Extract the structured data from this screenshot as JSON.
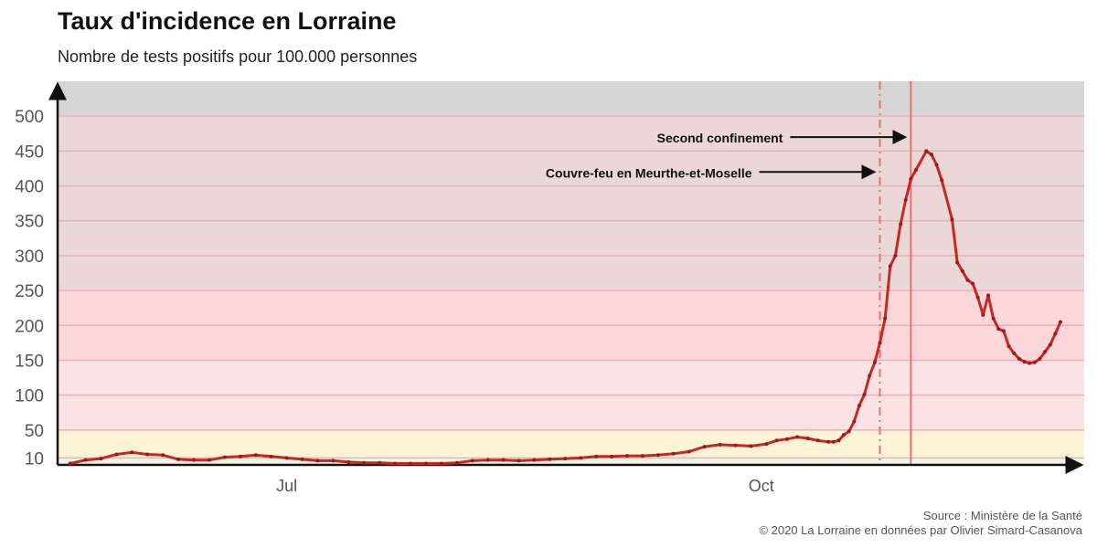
{
  "header": {
    "title": "Taux d'incidence en Lorraine",
    "subtitle": "Nombre de tests positifs pour 100.000 personnes"
  },
  "footer": {
    "source": "Source : Ministère de la Santé",
    "credit": "© 2020 La Lorraine en données par Olivier Simard-Casanova"
  },
  "colors": {
    "line": "#c62828",
    "band_low": "#eef5e4",
    "band_yellow": "#fdf3d6",
    "band_pink_light": "#fde2e4",
    "band_pink": "#fbd7da",
    "band_mauve": "#ecd7d7",
    "band_grey": "#d6d6d6",
    "event_line": "#e57373"
  },
  "chart_data": {
    "type": "line",
    "title": "Taux d'incidence en Lorraine",
    "subtitle": "Nombre de tests positifs pour 100.000 personnes",
    "xlabel": "",
    "ylabel": "",
    "x_start": "2020-05-19",
    "x_end": "2020-11-28",
    "x_ticks": [
      {
        "label": "Jul",
        "date": "2020-07-01"
      },
      {
        "label": "Oct",
        "date": "2020-10-01"
      }
    ],
    "y_ticks": [
      10,
      50,
      100,
      150,
      200,
      250,
      300,
      350,
      400,
      450,
      500
    ],
    "ylim": [
      0,
      550
    ],
    "grid": true,
    "bands": [
      {
        "from": 0,
        "to": 10,
        "color": "#eef5e4"
      },
      {
        "from": 10,
        "to": 50,
        "color": "#fdf3d6"
      },
      {
        "from": 50,
        "to": 150,
        "color": "#fde2e4"
      },
      {
        "from": 150,
        "to": 250,
        "color": "#fbd7da"
      },
      {
        "from": 250,
        "to": 500,
        "color": "#ecd7d7"
      },
      {
        "from": 500,
        "to": 550,
        "color": "#d6d6d6"
      }
    ],
    "events": [
      {
        "label": "Couvre-feu en Meurthe-et-Moselle",
        "date": "2020-10-24",
        "style": "dashdot",
        "label_y": 420
      },
      {
        "label": "Second confinement",
        "date": "2020-10-30",
        "style": "solid",
        "label_y": 470
      }
    ],
    "series": [
      {
        "points": [
          [
            "2020-05-20",
            2
          ],
          [
            "2020-05-23",
            7
          ],
          [
            "2020-05-26",
            9
          ],
          [
            "2020-05-29",
            15
          ],
          [
            "2020-06-01",
            18
          ],
          [
            "2020-06-04",
            15
          ],
          [
            "2020-06-07",
            14
          ],
          [
            "2020-06-10",
            8
          ],
          [
            "2020-06-13",
            7
          ],
          [
            "2020-06-16",
            7
          ],
          [
            "2020-06-19",
            11
          ],
          [
            "2020-06-22",
            12
          ],
          [
            "2020-06-25",
            14
          ],
          [
            "2020-06-28",
            12
          ],
          [
            "2020-07-01",
            10
          ],
          [
            "2020-07-04",
            8
          ],
          [
            "2020-07-07",
            6
          ],
          [
            "2020-07-10",
            6
          ],
          [
            "2020-07-13",
            4
          ],
          [
            "2020-07-16",
            3
          ],
          [
            "2020-07-19",
            3
          ],
          [
            "2020-07-22",
            2
          ],
          [
            "2020-07-25",
            2
          ],
          [
            "2020-07-28",
            2
          ],
          [
            "2020-07-31",
            2
          ],
          [
            "2020-08-03",
            3
          ],
          [
            "2020-08-06",
            6
          ],
          [
            "2020-08-09",
            7
          ],
          [
            "2020-08-12",
            7
          ],
          [
            "2020-08-15",
            6
          ],
          [
            "2020-08-18",
            7
          ],
          [
            "2020-08-21",
            8
          ],
          [
            "2020-08-24",
            9
          ],
          [
            "2020-08-27",
            10
          ],
          [
            "2020-08-30",
            12
          ],
          [
            "2020-09-02",
            12
          ],
          [
            "2020-09-05",
            13
          ],
          [
            "2020-09-08",
            13
          ],
          [
            "2020-09-11",
            14
          ],
          [
            "2020-09-14",
            16
          ],
          [
            "2020-09-17",
            19
          ],
          [
            "2020-09-20",
            26
          ],
          [
            "2020-09-23",
            29
          ],
          [
            "2020-09-26",
            28
          ],
          [
            "2020-09-29",
            27
          ],
          [
            "2020-10-02",
            30
          ],
          [
            "2020-10-04",
            35
          ],
          [
            "2020-10-06",
            37
          ],
          [
            "2020-10-08",
            40
          ],
          [
            "2020-10-10",
            38
          ],
          [
            "2020-10-12",
            35
          ],
          [
            "2020-10-14",
            33
          ],
          [
            "2020-10-15",
            33
          ],
          [
            "2020-10-16",
            35
          ],
          [
            "2020-10-17",
            43
          ],
          [
            "2020-10-18",
            48
          ],
          [
            "2020-10-19",
            62
          ],
          [
            "2020-10-20",
            85
          ],
          [
            "2020-10-21",
            101
          ],
          [
            "2020-10-22",
            128
          ],
          [
            "2020-10-23",
            147
          ],
          [
            "2020-10-24",
            175
          ],
          [
            "2020-10-25",
            210
          ],
          [
            "2020-10-26",
            285
          ],
          [
            "2020-10-27",
            300
          ],
          [
            "2020-10-28",
            345
          ],
          [
            "2020-10-29",
            380
          ],
          [
            "2020-10-30",
            410
          ],
          [
            "2020-10-31",
            423
          ],
          [
            "2020-11-02",
            450
          ],
          [
            "2020-11-03",
            445
          ],
          [
            "2020-11-04",
            430
          ],
          [
            "2020-11-05",
            408
          ],
          [
            "2020-11-07",
            352
          ],
          [
            "2020-11-08",
            290
          ],
          [
            "2020-11-09",
            278
          ],
          [
            "2020-11-10",
            265
          ],
          [
            "2020-11-11",
            260
          ],
          [
            "2020-11-12",
            240
          ],
          [
            "2020-11-13",
            215
          ],
          [
            "2020-11-14",
            243
          ],
          [
            "2020-11-15",
            210
          ],
          [
            "2020-11-16",
            195
          ],
          [
            "2020-11-17",
            192
          ],
          [
            "2020-11-18",
            170
          ],
          [
            "2020-11-19",
            160
          ],
          [
            "2020-11-20",
            152
          ],
          [
            "2020-11-21",
            148
          ],
          [
            "2020-11-22",
            146
          ],
          [
            "2020-11-23",
            147
          ],
          [
            "2020-11-24",
            152
          ],
          [
            "2020-11-25",
            162
          ],
          [
            "2020-11-26",
            172
          ],
          [
            "2020-11-27",
            188
          ],
          [
            "2020-11-28",
            205
          ]
        ]
      }
    ]
  }
}
